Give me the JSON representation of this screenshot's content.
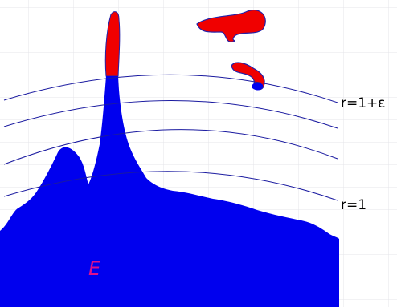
{
  "labels": {
    "outer": "r=1+ε",
    "inner": "r=1",
    "set": "E"
  }
}
